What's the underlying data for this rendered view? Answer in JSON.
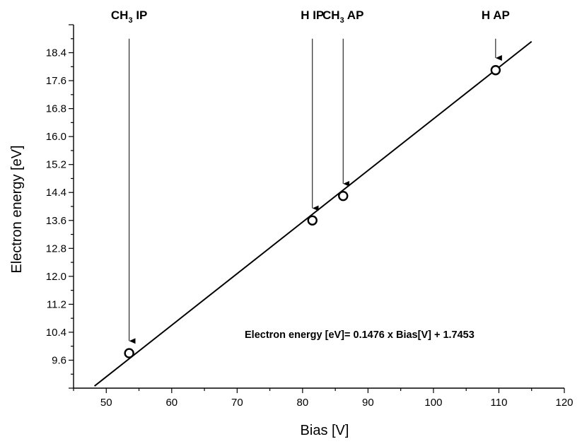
{
  "chart_data": {
    "type": "scatter",
    "xlabel": "Bias [V]",
    "ylabel": "Electron energy [eV]",
    "xlim": [
      45,
      120
    ],
    "ylim": [
      8.8,
      19.2
    ],
    "x_ticks": [
      50,
      60,
      70,
      80,
      90,
      100,
      110,
      120
    ],
    "x_tick_labels": [
      "50",
      "60",
      "70",
      "80",
      "90",
      "100",
      "110",
      "120"
    ],
    "y_ticks": [
      9.6,
      10.4,
      11.2,
      12.0,
      12.8,
      13.6,
      14.4,
      15.2,
      16.0,
      16.8,
      17.6,
      18.4
    ],
    "y_tick_labels": [
      "9.6",
      "10.4",
      "11.2",
      "12.0",
      "12.8",
      "13.6",
      "14.4",
      "15.2",
      "16.0",
      "16.8",
      "17.6",
      "18.4"
    ],
    "grid": false,
    "series": [
      {
        "marker": "open-circle",
        "color": "#000000",
        "points": [
          {
            "x": 53.5,
            "y": 9.8
          },
          {
            "x": 81.5,
            "y": 13.6
          },
          {
            "x": 86.2,
            "y": 14.3
          },
          {
            "x": 109.5,
            "y": 17.9
          }
        ]
      }
    ],
    "fit_line": {
      "slope": 0.1476,
      "intercept": 1.7453,
      "x_start": 48.2,
      "x_end": 115,
      "color": "#000000"
    },
    "equation_label": "Electron energy [eV]= 0.1476 x Bias[V] + 1.7453",
    "annotations": [
      {
        "main": "CH",
        "sub": "3",
        "rest": " IP",
        "x": 53.5,
        "point_y": 9.8,
        "arrow_from_y": 18.8,
        "arrow_to_y": 10.15
      },
      {
        "main": "H IP",
        "sub": "",
        "rest": "",
        "x": 81.5,
        "point_y": 13.6,
        "arrow_from_y": 18.8,
        "arrow_to_y": 13.95
      },
      {
        "main": "CH",
        "sub": "3",
        "rest": " AP",
        "x": 86.2,
        "point_y": 14.3,
        "arrow_from_y": 18.8,
        "arrow_to_y": 14.65
      },
      {
        "main": "H AP",
        "sub": "",
        "rest": "",
        "x": 109.5,
        "point_y": 17.9,
        "arrow_from_y": 18.8,
        "arrow_to_y": 18.25
      }
    ]
  }
}
